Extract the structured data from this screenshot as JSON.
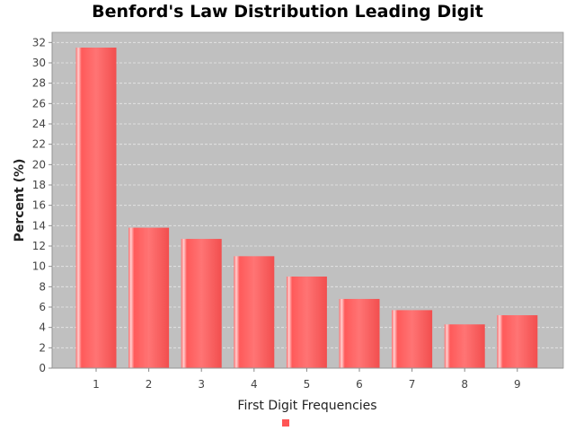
{
  "chart_data": {
    "type": "bar",
    "title": "Benford's Law Distribution Leading Digit",
    "xlabel": "First Digit Frequencies",
    "ylabel": "Percent (%)",
    "categories": [
      "1",
      "2",
      "3",
      "4",
      "5",
      "6",
      "7",
      "8",
      "9"
    ],
    "series": [
      {
        "values": [
          31.5,
          13.8,
          12.7,
          11.0,
          9.0,
          6.8,
          5.7,
          4.3,
          5.2
        ]
      }
    ],
    "ylim": [
      0,
      33
    ],
    "yticks": [
      0,
      2,
      4,
      6,
      8,
      10,
      12,
      14,
      16,
      18,
      20,
      22,
      24,
      26,
      28,
      30,
      32
    ],
    "grid": true,
    "legend": "bottom",
    "colors": {
      "bar": "#ff5555",
      "bar_highlight": "#ffcccc",
      "plot_background": "#c0c0c0",
      "grid": "#e8e8e8"
    }
  }
}
